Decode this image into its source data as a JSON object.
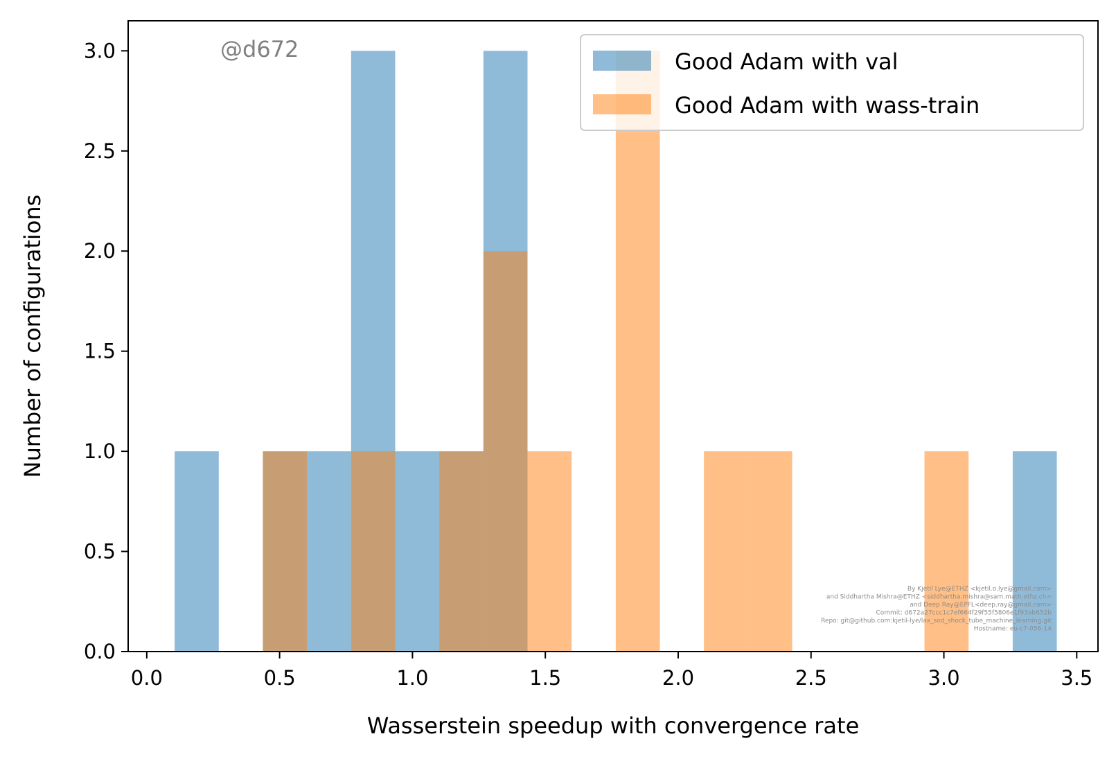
{
  "chart_data": {
    "type": "bar",
    "subtype": "overlapping-histogram",
    "xlabel": "Wasserstein speedup with convergence rate",
    "ylabel": "Number of configurations",
    "xlim": [
      -0.07,
      3.58
    ],
    "ylim": [
      0,
      3.15
    ],
    "xticks": [
      0.0,
      0.5,
      1.0,
      1.5,
      2.0,
      2.5,
      3.0,
      3.5
    ],
    "xtick_labels": [
      "0.0",
      "0.5",
      "1.0",
      "1.5",
      "2.0",
      "2.5",
      "3.0",
      "3.5"
    ],
    "yticks": [
      0.0,
      0.5,
      1.0,
      1.5,
      2.0,
      2.5,
      3.0
    ],
    "ytick_labels": [
      "0.0",
      "0.5",
      "1.0",
      "1.5",
      "2.0",
      "2.5",
      "3.0"
    ],
    "grid": false,
    "legend_position": "top-right",
    "bin_edges": [
      0.105,
      0.271,
      0.437,
      0.603,
      0.769,
      0.935,
      1.101,
      1.267,
      1.433,
      1.599,
      1.765,
      1.931,
      2.097,
      2.263,
      2.429,
      2.595,
      2.761,
      2.927,
      3.093,
      3.259,
      3.425
    ],
    "series": [
      {
        "name": "Good Adam with val",
        "color": "#1f77b4",
        "opacity": 0.5,
        "counts": [
          1,
          0,
          1,
          1,
          3,
          1,
          1,
          3,
          0,
          0,
          0,
          0,
          0,
          0,
          0,
          0,
          0,
          0,
          0,
          1
        ]
      },
      {
        "name": "Good Adam with wass-train",
        "color": "#ff7f0e",
        "opacity": 0.5,
        "counts": [
          0,
          0,
          1,
          0,
          1,
          0,
          1,
          2,
          1,
          0,
          3,
          0,
          1,
          1,
          0,
          0,
          0,
          1,
          0,
          0
        ]
      }
    ]
  },
  "watermark": "@d672",
  "credits": [
    "By Kjetil Lye@ETHZ <kjetil.o.lye@gmail.com>",
    "and Siddhartha Mishra@ETHZ <siddhartha.mishra@sam.math.ethz.ch>",
    "and Deep Ray@EPFL<deep.ray@gmail.com>",
    "Commit: d672a27ccc1c7ef664f29f55f5806e1f93ab652b",
    "Repo: git@github.com:kjetil-lye/lax_sod_shock_tube_machine_learning.git",
    "Hostname: eu-c7-056-14"
  ]
}
